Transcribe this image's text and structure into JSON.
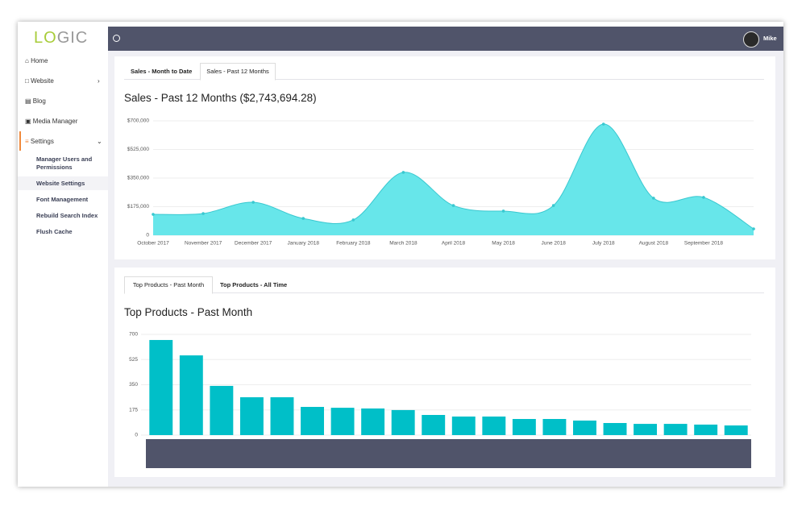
{
  "logo": [
    "LO",
    "GIC"
  ],
  "nav": [
    "Home",
    "Website",
    "Blog",
    "Media Manager",
    "Settings"
  ],
  "subnav": [
    "Manager Users and Permissions",
    "Website Settings",
    "Font Management",
    "Rebuild Search Index",
    "Flush Cache"
  ],
  "header": {
    "user": "Mike"
  },
  "panels": [
    {
      "tabs": [
        "Sales - Month to Date",
        "Sales - Past 12 Months"
      ]
    },
    {
      "tabs": [
        "Top Products - Past Month",
        "Top Products - All Time"
      ]
    }
  ],
  "chart_data": [
    {
      "type": "area",
      "title": "Sales - Past 12 Months ($2,743,694.28)",
      "categories": [
        "October 2017",
        "November 2017",
        "December 2017",
        "January 2018",
        "February 2018",
        "March 2018",
        "April 2018",
        "May 2018",
        "June 2018",
        "July 2018",
        "August 2018",
        "September 2018",
        null
      ],
      "values": [
        128000,
        133000,
        202000,
        103000,
        94000,
        385000,
        182000,
        148000,
        182000,
        680000,
        227000,
        232000,
        39000
      ],
      "color": "#67e6ea",
      "line_color": "#39c8d0",
      "ylim": [
        0,
        700000
      ],
      "yticks": [
        0,
        {
          "value": 175000,
          "label": "$175,000"
        },
        {
          "value": 350000,
          "label": "$350,000"
        },
        {
          "value": 525000,
          "label": "$525,000"
        },
        {
          "value": 700000,
          "label": "$700,000"
        }
      ],
      "grid": true
    },
    {
      "type": "bar",
      "title": "Top Products - Past Month",
      "values": [
        661,
        554,
        342,
        263,
        263,
        196,
        190,
        185,
        174,
        140,
        129,
        129,
        112,
        112,
        101,
        84,
        78,
        78,
        73,
        67
      ],
      "color": "#00bfc8",
      "ylim": [
        0,
        700
      ],
      "yticks": [
        0,
        175,
        350,
        525,
        700
      ],
      "grid": true
    }
  ]
}
